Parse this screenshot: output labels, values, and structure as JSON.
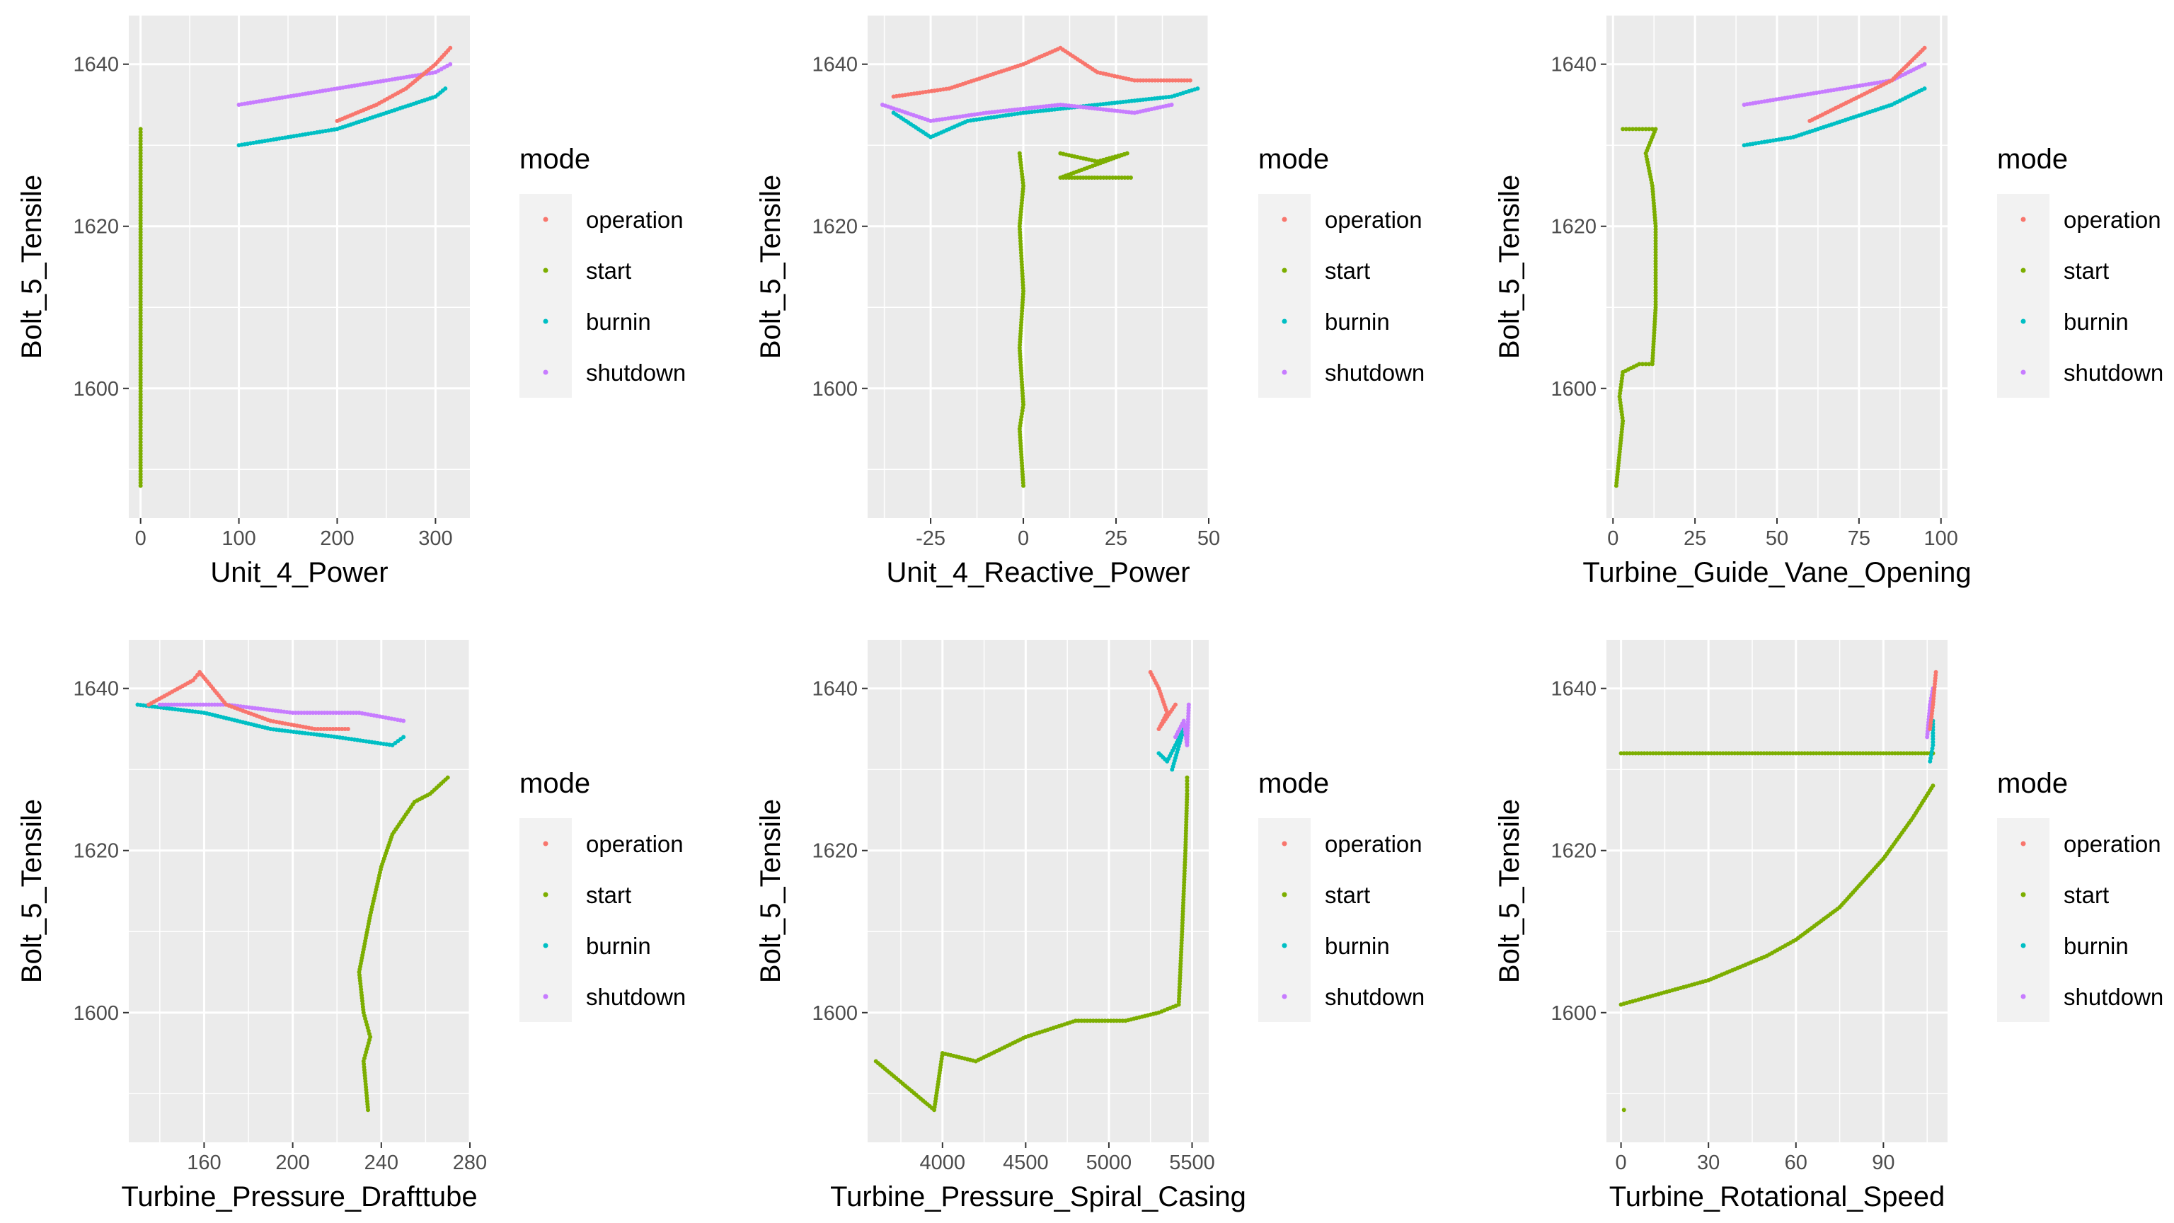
{
  "colors": {
    "panel_bg": "#EBEBEB",
    "grid": "#FFFFFF",
    "legend_key_bg": "#F2F2F2",
    "tick_text": "#4D4D4D",
    "text": "#000000"
  },
  "legend": {
    "title": "mode",
    "position": "right",
    "entries": [
      {
        "name": "operation",
        "color": "#F8766D"
      },
      {
        "name": "start",
        "color": "#7CAE00"
      },
      {
        "name": "burnin",
        "color": "#00BFC4"
      },
      {
        "name": "shutdown",
        "color": "#C77CFF"
      }
    ]
  },
  "chart_data": [
    {
      "type": "scatter",
      "xlabel": "Unit_4_Power",
      "ylabel": "Bolt_5_Tensile",
      "xlim": [
        -12,
        335
      ],
      "ylim": [
        1584,
        1646
      ],
      "xticks": [
        {
          "value": 0,
          "label": "0"
        },
        {
          "value": 100,
          "label": "100"
        },
        {
          "value": 200,
          "label": "200"
        },
        {
          "value": 300,
          "label": "300"
        }
      ],
      "yticks": [
        {
          "value": 1600,
          "label": "1600"
        },
        {
          "value": 1620,
          "label": "1620"
        },
        {
          "value": 1640,
          "label": "1640"
        }
      ],
      "grid": true,
      "series": [
        {
          "name": "start",
          "points": [
            [
              0,
              1632
            ],
            [
              0,
              1629
            ],
            [
              0,
              1625
            ],
            [
              0,
              1620
            ],
            [
              0,
              1615
            ],
            [
              0,
              1610
            ],
            [
              0,
              1605
            ],
            [
              0,
              1600
            ],
            [
              0,
              1596
            ],
            [
              0,
              1593
            ],
            [
              0,
              1588
            ]
          ]
        },
        {
          "name": "burnin",
          "points": [
            [
              100,
              1630
            ],
            [
              150,
              1631
            ],
            [
              200,
              1632
            ],
            [
              250,
              1634
            ],
            [
              300,
              1636
            ],
            [
              310,
              1637
            ]
          ]
        },
        {
          "name": "shutdown",
          "points": [
            [
              100,
              1635
            ],
            [
              150,
              1636
            ],
            [
              200,
              1637
            ],
            [
              250,
              1638
            ],
            [
              300,
              1639
            ],
            [
              315,
              1640
            ]
          ]
        },
        {
          "name": "operation",
          "points": [
            [
              200,
              1633
            ],
            [
              240,
              1635
            ],
            [
              270,
              1637
            ],
            [
              300,
              1640
            ],
            [
              315,
              1642
            ]
          ]
        }
      ]
    },
    {
      "type": "scatter",
      "xlabel": "Unit_4_Reactive_Power",
      "ylabel": "Bolt_5_Tensile",
      "xlim": [
        -42,
        50
      ],
      "ylim": [
        1584,
        1646
      ],
      "xticks": [
        {
          "value": -25,
          "label": "-25"
        },
        {
          "value": 0,
          "label": "0"
        },
        {
          "value": 25,
          "label": "25"
        },
        {
          "value": 50,
          "label": "50"
        }
      ],
      "yticks": [
        {
          "value": 1600,
          "label": "1600"
        },
        {
          "value": 1620,
          "label": "1620"
        },
        {
          "value": 1640,
          "label": "1640"
        }
      ],
      "grid": true,
      "series": [
        {
          "name": "start",
          "points": [
            [
              -1,
              1629
            ],
            [
              0,
              1625
            ],
            [
              -1,
              1620
            ],
            [
              0,
              1612
            ],
            [
              -1,
              1605
            ],
            [
              0,
              1598
            ],
            [
              -1,
              1595
            ],
            [
              0,
              1588
            ],
            [
              10,
              1629
            ],
            [
              20,
              1628
            ],
            [
              28,
              1629
            ],
            [
              10,
              1626
            ],
            [
              20,
              1626
            ],
            [
              29,
              1626
            ]
          ]
        },
        {
          "name": "burnin",
          "points": [
            [
              -35,
              1634
            ],
            [
              -25,
              1631
            ],
            [
              -15,
              1633
            ],
            [
              0,
              1634
            ],
            [
              20,
              1635
            ],
            [
              40,
              1636
            ],
            [
              47,
              1637
            ]
          ]
        },
        {
          "name": "shutdown",
          "points": [
            [
              -38,
              1635
            ],
            [
              -25,
              1633
            ],
            [
              -10,
              1634
            ],
            [
              10,
              1635
            ],
            [
              30,
              1634
            ],
            [
              40,
              1635
            ]
          ]
        },
        {
          "name": "operation",
          "points": [
            [
              -35,
              1636
            ],
            [
              -20,
              1637
            ],
            [
              0,
              1640
            ],
            [
              10,
              1642
            ],
            [
              20,
              1639
            ],
            [
              30,
              1638
            ],
            [
              45,
              1638
            ]
          ]
        }
      ]
    },
    {
      "type": "scatter",
      "xlabel": "Turbine_Guide_Vane_Opening",
      "ylabel": "Bolt_5_Tensile",
      "xlim": [
        -2,
        102
      ],
      "ylim": [
        1584,
        1646
      ],
      "xticks": [
        {
          "value": 0,
          "label": "0"
        },
        {
          "value": 25,
          "label": "25"
        },
        {
          "value": 50,
          "label": "50"
        },
        {
          "value": 75,
          "label": "75"
        },
        {
          "value": 100,
          "label": "100"
        }
      ],
      "yticks": [
        {
          "value": 1600,
          "label": "1600"
        },
        {
          "value": 1620,
          "label": "1620"
        },
        {
          "value": 1640,
          "label": "1640"
        }
      ],
      "grid": true,
      "series": [
        {
          "name": "start",
          "points": [
            [
              3,
              1632
            ],
            [
              8,
              1632
            ],
            [
              13,
              1632
            ],
            [
              10,
              1629
            ],
            [
              12,
              1625
            ],
            [
              13,
              1620
            ],
            [
              13,
              1610
            ],
            [
              12,
              1603
            ],
            [
              8,
              1603
            ],
            [
              3,
              1602
            ],
            [
              2,
              1599
            ],
            [
              3,
              1596
            ],
            [
              1,
              1588
            ]
          ]
        },
        {
          "name": "burnin",
          "points": [
            [
              40,
              1630
            ],
            [
              55,
              1631
            ],
            [
              70,
              1633
            ],
            [
              85,
              1635
            ],
            [
              95,
              1637
            ]
          ]
        },
        {
          "name": "shutdown",
          "points": [
            [
              40,
              1635
            ],
            [
              55,
              1636
            ],
            [
              70,
              1637
            ],
            [
              85,
              1638
            ],
            [
              95,
              1640
            ]
          ]
        },
        {
          "name": "operation",
          "points": [
            [
              60,
              1633
            ],
            [
              75,
              1636
            ],
            [
              85,
              1638
            ],
            [
              90,
              1640
            ],
            [
              95,
              1642
            ]
          ]
        }
      ]
    },
    {
      "type": "scatter",
      "xlabel": "Turbine_Pressure_Drafttube",
      "ylabel": "Bolt_5_Tensile",
      "xlim": [
        126,
        280
      ],
      "ylim": [
        1584,
        1646
      ],
      "xticks": [
        {
          "value": 160,
          "label": "160"
        },
        {
          "value": 200,
          "label": "200"
        },
        {
          "value": 240,
          "label": "240"
        },
        {
          "value": 280,
          "label": "280"
        }
      ],
      "yticks": [
        {
          "value": 1600,
          "label": "1600"
        },
        {
          "value": 1620,
          "label": "1620"
        },
        {
          "value": 1640,
          "label": "1640"
        }
      ],
      "grid": true,
      "series": [
        {
          "name": "start",
          "points": [
            [
              270,
              1629
            ],
            [
              262,
              1627
            ],
            [
              255,
              1626
            ],
            [
              245,
              1622
            ],
            [
              240,
              1618
            ],
            [
              235,
              1612
            ],
            [
              230,
              1605
            ],
            [
              232,
              1600
            ],
            [
              235,
              1597
            ],
            [
              232,
              1594
            ],
            [
              234,
              1588
            ]
          ]
        },
        {
          "name": "burnin",
          "points": [
            [
              130,
              1638
            ],
            [
              160,
              1637
            ],
            [
              190,
              1635
            ],
            [
              220,
              1634
            ],
            [
              245,
              1633
            ],
            [
              250,
              1634
            ]
          ]
        },
        {
          "name": "shutdown",
          "points": [
            [
              140,
              1638
            ],
            [
              170,
              1638
            ],
            [
              200,
              1637
            ],
            [
              230,
              1637
            ],
            [
              250,
              1636
            ]
          ]
        },
        {
          "name": "operation",
          "points": [
            [
              135,
              1638
            ],
            [
              155,
              1641
            ],
            [
              158,
              1642
            ],
            [
              170,
              1638
            ],
            [
              190,
              1636
            ],
            [
              210,
              1635
            ],
            [
              225,
              1635
            ]
          ]
        }
      ]
    },
    {
      "type": "scatter",
      "xlabel": "Turbine_Pressure_Spiral_Casing",
      "ylabel": "Bolt_5_Tensile",
      "xlim": [
        3550,
        5600
      ],
      "ylim": [
        1584,
        1646
      ],
      "xticks": [
        {
          "value": 4000,
          "label": "4000"
        },
        {
          "value": 4500,
          "label": "4500"
        },
        {
          "value": 5000,
          "label": "5000"
        },
        {
          "value": 5500,
          "label": "5500"
        }
      ],
      "yticks": [
        {
          "value": 1600,
          "label": "1600"
        },
        {
          "value": 1620,
          "label": "1620"
        },
        {
          "value": 1640,
          "label": "1640"
        }
      ],
      "grid": true,
      "series": [
        {
          "name": "start",
          "points": [
            [
              3600,
              1594
            ],
            [
              3950,
              1588
            ],
            [
              4000,
              1595
            ],
            [
              4200,
              1594
            ],
            [
              4500,
              1597
            ],
            [
              4800,
              1599
            ],
            [
              5100,
              1599
            ],
            [
              5300,
              1600
            ],
            [
              5420,
              1601
            ],
            [
              5440,
              1610
            ],
            [
              5460,
              1620
            ],
            [
              5470,
              1627
            ],
            [
              5470,
              1629
            ]
          ]
        },
        {
          "name": "burnin",
          "points": [
            [
              5300,
              1632
            ],
            [
              5350,
              1631
            ],
            [
              5400,
              1633
            ],
            [
              5450,
              1635
            ],
            [
              5380,
              1630
            ]
          ]
        },
        {
          "name": "shutdown",
          "points": [
            [
              5400,
              1634
            ],
            [
              5450,
              1636
            ],
            [
              5470,
              1633
            ],
            [
              5480,
              1638
            ]
          ]
        },
        {
          "name": "operation",
          "points": [
            [
              5250,
              1642
            ],
            [
              5300,
              1640
            ],
            [
              5350,
              1637
            ],
            [
              5300,
              1635
            ],
            [
              5400,
              1638
            ]
          ]
        }
      ]
    },
    {
      "type": "scatter",
      "xlabel": "Turbine_Rotational_Speed",
      "ylabel": "Bolt_5_Tensile",
      "xlim": [
        -5,
        112
      ],
      "ylim": [
        1584,
        1646
      ],
      "xticks": [
        {
          "value": 0,
          "label": "0"
        },
        {
          "value": 30,
          "label": "30"
        },
        {
          "value": 60,
          "label": "60"
        },
        {
          "value": 90,
          "label": "90"
        }
      ],
      "yticks": [
        {
          "value": 1600,
          "label": "1600"
        },
        {
          "value": 1620,
          "label": "1620"
        },
        {
          "value": 1640,
          "label": "1640"
        }
      ],
      "grid": true,
      "series": [
        {
          "name": "start",
          "points": [
            [
              0,
              1632
            ],
            [
              20,
              1632
            ],
            [
              40,
              1632
            ],
            [
              60,
              1632
            ],
            [
              80,
              1632
            ],
            [
              100,
              1632
            ],
            [
              107,
              1632
            ],
            [
              0,
              1601
            ],
            [
              10,
              1602
            ],
            [
              30,
              1604
            ],
            [
              50,
              1607
            ],
            [
              60,
              1609
            ],
            [
              75,
              1613
            ],
            [
              90,
              1619
            ],
            [
              100,
              1624
            ],
            [
              107,
              1628
            ],
            [
              1,
              1588
            ]
          ]
        },
        {
          "name": "burnin",
          "points": [
            [
              106,
              1631
            ],
            [
              107,
              1633
            ],
            [
              107,
              1636
            ]
          ]
        },
        {
          "name": "shutdown",
          "points": [
            [
              105,
              1634
            ],
            [
              106,
              1638
            ],
            [
              107,
              1640
            ]
          ]
        },
        {
          "name": "operation",
          "points": [
            [
              106,
              1635
            ],
            [
              107,
              1638
            ],
            [
              108,
              1642
            ]
          ]
        }
      ]
    }
  ]
}
